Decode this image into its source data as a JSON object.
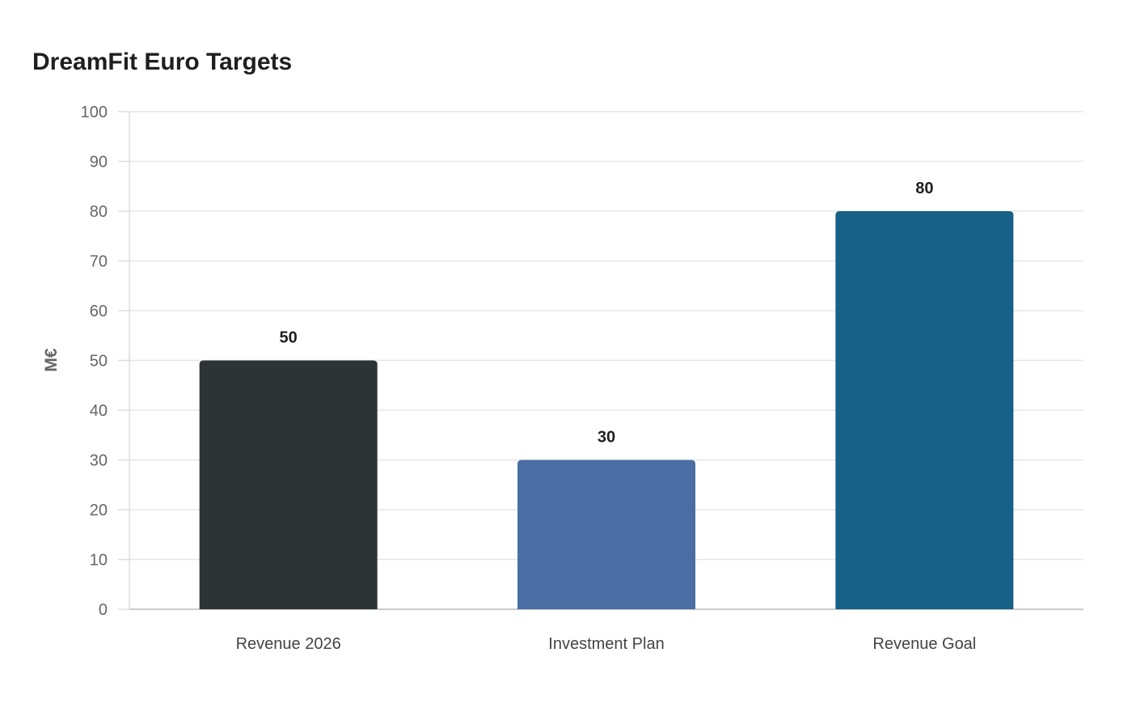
{
  "chart_data": {
    "type": "bar",
    "title": "DreamFit Euro Targets",
    "xlabel": "",
    "ylabel": "M€",
    "categories": [
      "Revenue 2026",
      "Investment Plan",
      "Revenue Goal"
    ],
    "values": [
      50,
      30,
      80
    ],
    "colors": [
      "#2d3436",
      "#4a6ea3",
      "#176087"
    ],
    "ylim": [
      0,
      100
    ],
    "yticks": [
      0,
      10,
      20,
      30,
      40,
      50,
      60,
      70,
      80,
      90,
      100
    ],
    "grid": true,
    "legend": "none"
  }
}
